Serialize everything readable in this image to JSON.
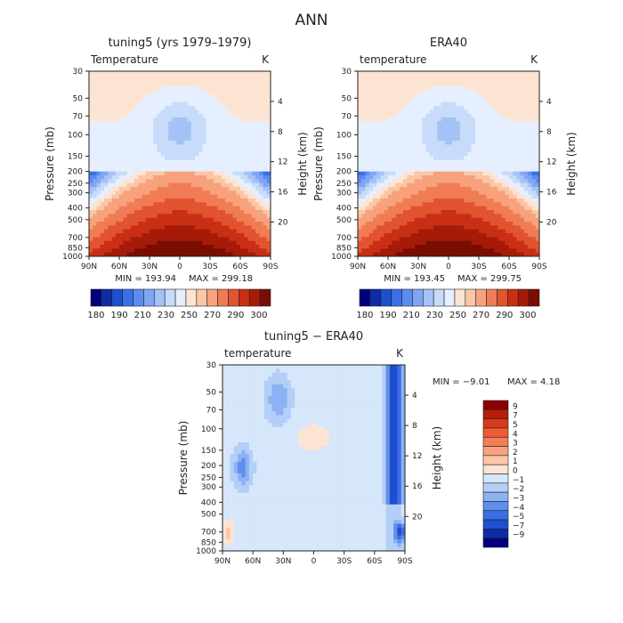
{
  "title": "ANN",
  "chart_data": [
    {
      "type": "heatmap",
      "title": "tuning5 (yrs 1979–1979)",
      "variable": "Temperature",
      "units": "K",
      "xlabel": "",
      "ylabel": "Pressure (mb)",
      "ylabel_right": "Height (km)",
      "x_ticks": [
        "90N",
        "60N",
        "30N",
        "0",
        "30S",
        "60S",
        "90S"
      ],
      "y_ticks": [
        "30",
        "50",
        "70",
        "100",
        "150",
        "200",
        "250",
        "300",
        "400",
        "500",
        "700",
        "850",
        "1000"
      ],
      "height_ticks": [
        "4",
        "8",
        "12",
        "16",
        "20"
      ],
      "min_label": "MIN = 193.94",
      "max_label": "MAX = 299.18",
      "min": 193.94,
      "max": 299.18,
      "colorbar": {
        "labels": [
          "180",
          "190",
          "210",
          "230",
          "250",
          "270",
          "290",
          "300"
        ],
        "colors": [
          "#00007f",
          "#0d2ca6",
          "#1f4fcf",
          "#3a6fe6",
          "#5a8cf0",
          "#7ea6f5",
          "#a5c2f7",
          "#c7dbfa",
          "#e6efff",
          "#fde4d2",
          "#fbc6a5",
          "#f7a27c",
          "#f07c55",
          "#e2532f",
          "#c92f14",
          "#a61b08",
          "#7a0d02"
        ]
      }
    },
    {
      "type": "heatmap",
      "title": "ERA40",
      "variable": "temperature",
      "units": "K",
      "xlabel": "",
      "ylabel": "Pressure (mb)",
      "ylabel_right": "Height (km)",
      "x_ticks": [
        "90N",
        "60N",
        "30N",
        "0",
        "30S",
        "60S",
        "90S"
      ],
      "y_ticks": [
        "30",
        "50",
        "70",
        "100",
        "150",
        "200",
        "250",
        "300",
        "400",
        "500",
        "700",
        "850",
        "1000"
      ],
      "height_ticks": [
        "4",
        "8",
        "12",
        "16",
        "20"
      ],
      "min_label": "MIN = 193.45",
      "max_label": "MAX = 299.75",
      "min": 193.45,
      "max": 299.75,
      "colorbar": {
        "labels": [
          "180",
          "190",
          "210",
          "230",
          "250",
          "270",
          "290",
          "300"
        ],
        "colors": [
          "#00007f",
          "#0d2ca6",
          "#1f4fcf",
          "#3a6fe6",
          "#5a8cf0",
          "#7ea6f5",
          "#a5c2f7",
          "#c7dbfa",
          "#e6efff",
          "#fde4d2",
          "#fbc6a5",
          "#f7a27c",
          "#f07c55",
          "#e2532f",
          "#c92f14",
          "#a61b08",
          "#7a0d02"
        ]
      }
    },
    {
      "type": "heatmap",
      "title": "tuning5 − ERA40",
      "variable": "temperature",
      "units": "K",
      "xlabel": "",
      "ylabel": "Pressure (mb)",
      "ylabel_right": "Height (km)",
      "x_ticks": [
        "90N",
        "60N",
        "30N",
        "0",
        "30S",
        "60S",
        "90S"
      ],
      "y_ticks": [
        "30",
        "50",
        "70",
        "100",
        "150",
        "200",
        "250",
        "300",
        "400",
        "500",
        "700",
        "850",
        "1000"
      ],
      "height_ticks": [
        "4",
        "8",
        "12",
        "16",
        "20"
      ],
      "min_label": "MIN = −9.01",
      "max_label": "MAX = 4.18",
      "min": -9.01,
      "max": 4.18,
      "colorbar": {
        "labels": [
          "9",
          "7",
          "5",
          "4",
          "3",
          "2",
          "1",
          "0",
          "−1",
          "−2",
          "−3",
          "−4",
          "−5",
          "−7",
          "−9"
        ],
        "colors": [
          "#8b0000",
          "#b81d06",
          "#d8391a",
          "#ee5a35",
          "#f57e58",
          "#f8a27f",
          "#fbc6a8",
          "#fde4d2",
          "#d6e6fb",
          "#b3cff7",
          "#8cb2f3",
          "#5f8fec",
          "#3a6fe6",
          "#1f4fcf",
          "#0d2ca6",
          "#00007f"
        ]
      }
    }
  ]
}
